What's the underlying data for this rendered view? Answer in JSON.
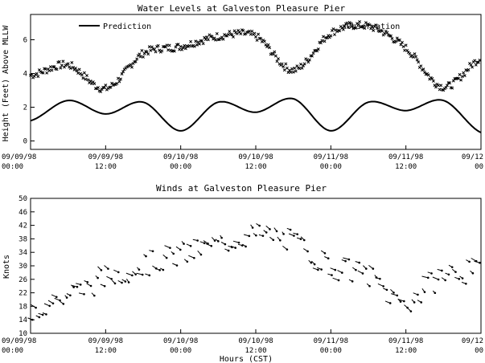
{
  "chart_data": [
    {
      "type": "line",
      "title": "Water Levels at Galveston Pleasure Pier",
      "ylabel": "Height (Feet) Above MLLW",
      "xlabel": "",
      "ylim": [
        -0.5,
        7.5
      ],
      "yticks": [
        0,
        2,
        4,
        6
      ],
      "ytick_labels": [
        "0",
        "2",
        "4",
        "6"
      ],
      "grid": false,
      "legend_position": "top",
      "xticks": [
        [
          "09/09/98",
          "00:00"
        ],
        [
          "09/09/98",
          "12:00"
        ],
        [
          "09/10/98",
          "00:00"
        ],
        [
          "09/10/98",
          "12:00"
        ],
        [
          "09/11/98",
          "00:00"
        ],
        [
          "09/11/98",
          "12:00"
        ],
        [
          "09/12",
          "00"
        ]
      ],
      "x_hours": [
        0,
        6,
        12,
        18,
        24,
        30,
        36,
        42,
        48,
        54,
        60,
        66,
        72
      ],
      "series": [
        {
          "name": "Prediction",
          "style": "line",
          "values": [
            1.2,
            2.4,
            1.6,
            2.3,
            0.6,
            2.3,
            1.7,
            2.5,
            0.6,
            2.3,
            1.8,
            2.4,
            0.5
          ]
        },
        {
          "name": "xObservation",
          "style": "markers",
          "values": [
            3.9,
            4.5,
            3.1,
            5.2,
            5.6,
            6.2,
            6.2,
            4.2,
            6.4,
            6.8,
            5.5,
            3.2,
            4.9
          ]
        }
      ]
    },
    {
      "type": "scatter",
      "title": "Winds at Galveston Pleasure Pier",
      "ylabel": "Knots",
      "xlabel": "Hours (CST)",
      "ylim": [
        10,
        50
      ],
      "yticks": [
        10,
        14,
        18,
        22,
        26,
        30,
        34,
        38,
        42,
        46,
        50
      ],
      "ytick_labels": [
        "10",
        "14",
        "18",
        "22",
        "26",
        "30",
        "34",
        "38",
        "42",
        "46",
        "50"
      ],
      "grid": false,
      "xticks": [
        [
          "09/09/98",
          "00:00"
        ],
        [
          "09/09/98",
          "12:00"
        ],
        [
          "09/10/98",
          "00:00"
        ],
        [
          "09/10/98",
          "12:00"
        ],
        [
          "09/11/98",
          "00:00"
        ],
        [
          "09/11/98",
          "12:00"
        ],
        [
          "09/12",
          "00"
        ]
      ],
      "x_hours": [
        0,
        6,
        12,
        18,
        24,
        30,
        36,
        42,
        48,
        54,
        60,
        66,
        72
      ],
      "series": [
        {
          "name": "",
          "style": "wind-arrows",
          "values": [
            17,
            21,
            26,
            30,
            33,
            36,
            39,
            37,
            30,
            27,
            19,
            27,
            28
          ]
        }
      ]
    }
  ]
}
